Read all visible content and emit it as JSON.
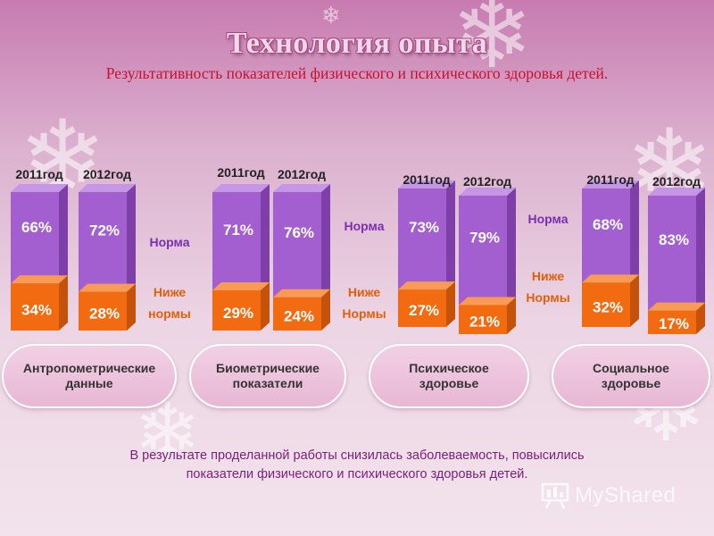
{
  "slide": {
    "title": "Технология опыта",
    "subtitle": "Результативность показателей физического и психического  здоровья детей."
  },
  "colors": {
    "norm_front": "#a35ed0",
    "norm_top": "#c596e6",
    "norm_side": "#7e3fa9",
    "below_front": "#f26b10",
    "below_top": "#f99a55",
    "below_side": "#c4520a",
    "norm_label": "#7b2fb0",
    "below_label": "#e0600c"
  },
  "chart_data": {
    "type": "bar",
    "stacked": true,
    "categories": [
      "Антропометрические данные",
      "Биометрические показатели",
      "Психическое здоровье",
      "Социальное здоровье"
    ],
    "years": [
      "2011год",
      "2012год"
    ],
    "series": [
      {
        "name": "Норма",
        "values_2011": [
          66,
          71,
          73,
          68
        ],
        "values_2012": [
          72,
          76,
          79,
          83
        ]
      },
      {
        "name": "Ниже нормы",
        "values_2011": [
          34,
          29,
          27,
          32
        ],
        "values_2012": [
          28,
          24,
          21,
          17
        ]
      }
    ],
    "value_labels_2011": [
      [
        "66%",
        "34%"
      ],
      [
        "71%",
        "29%"
      ],
      [
        "73%",
        "27%"
      ],
      [
        "68%",
        "32%"
      ]
    ],
    "value_labels_2012": [
      [
        "72%",
        "28%"
      ],
      [
        "76%",
        "24%"
      ],
      [
        "79%",
        "21%"
      ],
      [
        "83%",
        "17%"
      ]
    ],
    "legend_norm": [
      "Норма",
      "Норма",
      "Норма"
    ],
    "legend_below": [
      [
        "Ниже",
        "нормы"
      ],
      [
        "Ниже",
        "Нормы"
      ],
      [
        "Ниже",
        "Нормы"
      ]
    ],
    "unit": "%"
  },
  "footer": {
    "line1": "В результате проделанной работы снизилась заболеваемость, повысились",
    "line2": "показатели физического и психического здоровья детей."
  },
  "watermark": "MyShared"
}
